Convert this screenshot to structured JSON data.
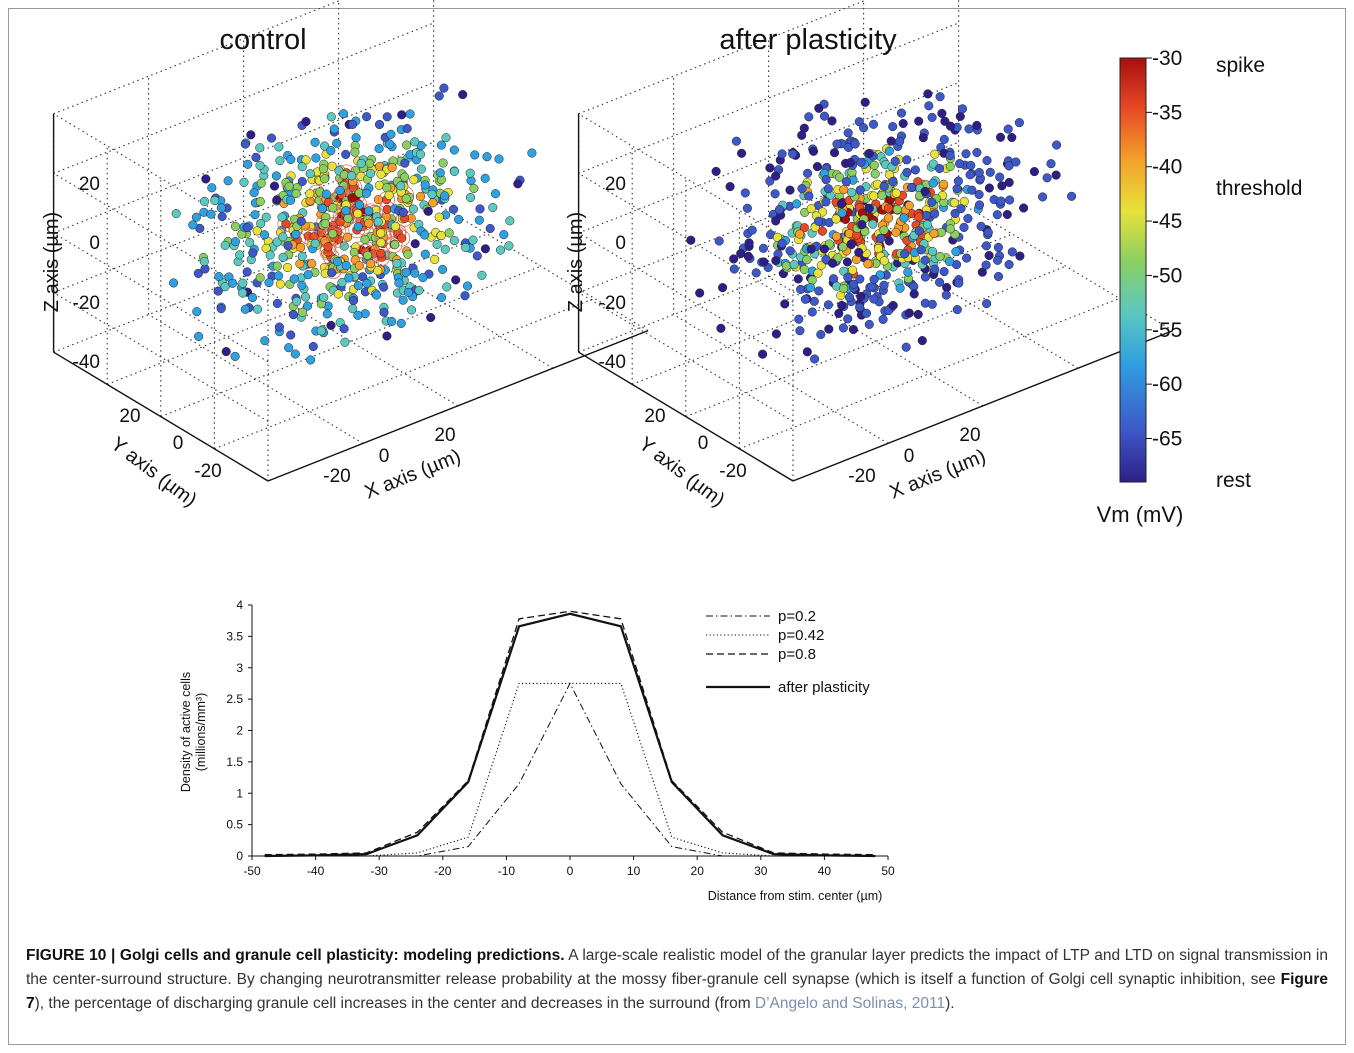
{
  "panel_3d": {
    "titles": [
      "control",
      "after plasticity"
    ],
    "z_axis_label": "Z axis (µm)",
    "y_axis_label": "Y axis (µm)",
    "x_axis_label": "X axis (µm)",
    "z_ticks": [
      "20",
      "0",
      "-20",
      "-40"
    ],
    "y_ticks": [
      "20",
      "0",
      "-20"
    ],
    "x_ticks": [
      "20",
      "0",
      "-20"
    ],
    "point_counts": [
      650,
      650
    ]
  },
  "colorbar": {
    "ticks": [
      "-30",
      "-35",
      "-40",
      "-45",
      "-50",
      "-55",
      "-60",
      "-65"
    ],
    "label": "Vm (mV)",
    "state_labels": [
      "spike",
      "threshold",
      "rest"
    ],
    "colors": [
      "#2e1f87",
      "#3d58c8",
      "#2fa0e0",
      "#5cc8c0",
      "#8bcf62",
      "#e8e23a",
      "#f4a02a",
      "#e84a25",
      "#a5100f"
    ]
  },
  "chart_data": {
    "type": "line",
    "title": "",
    "xlabel": "Distance from stim. center (µm)",
    "ylabel": "Density of active cells (millions/mm³)",
    "ylabel_line1": "Density of active cells",
    "ylabel_line2": "(millions/mm³)",
    "xlim": [
      -50,
      50
    ],
    "ylim": [
      0,
      4
    ],
    "x_ticks": [
      "-50",
      "-40",
      "-30",
      "-20",
      "-10",
      "0",
      "10",
      "20",
      "30",
      "40",
      "50"
    ],
    "y_ticks": [
      "0",
      "0.5",
      "1",
      "1.5",
      "2",
      "2.5",
      "3",
      "3.5",
      "4"
    ],
    "x": [
      -48,
      -40,
      -32,
      -24,
      -16,
      -8,
      0,
      8,
      16,
      24,
      32,
      40,
      48
    ],
    "series": [
      {
        "name": "p=0.2",
        "values": [
          0,
          0,
          0,
          0,
          0.15,
          1.15,
          2.75,
          1.15,
          0.15,
          0,
          0,
          0,
          0
        ]
      },
      {
        "name": "p=0.42",
        "values": [
          0,
          0,
          0,
          0.05,
          0.3,
          2.75,
          2.75,
          2.75,
          0.3,
          0.05,
          0,
          0,
          0
        ]
      },
      {
        "name": "p=0.8",
        "values": [
          0.02,
          0.03,
          0.05,
          0.38,
          1.2,
          3.78,
          3.9,
          3.78,
          1.2,
          0.38,
          0.05,
          0.03,
          0.02
        ]
      },
      {
        "name": "after plasticity",
        "values": [
          0,
          0.01,
          0.03,
          0.33,
          1.18,
          3.66,
          3.86,
          3.66,
          1.18,
          0.33,
          0.03,
          0.01,
          0
        ]
      }
    ],
    "legend_position": "top-right"
  },
  "caption": {
    "figure_label": "FIGURE 10 | Golgi cells and granule cell plasticity: modeling predictions.",
    "text_part1": " A large-scale realistic model of the granular layer predicts the impact of LTP and LTD on signal transmission in the center-surround structure. By changing neurotransmitter release probability at the mossy fiber-granule cell synapse (which is itself a function of Golgi cell synaptic inhibition, see ",
    "figure_ref": "Figure 7",
    "text_part2": "), the percentage of discharging granule cell increases in the center and decreases in the surround (from ",
    "citation": "D’Angelo and Solinas, 2011",
    "text_part3": ")."
  }
}
